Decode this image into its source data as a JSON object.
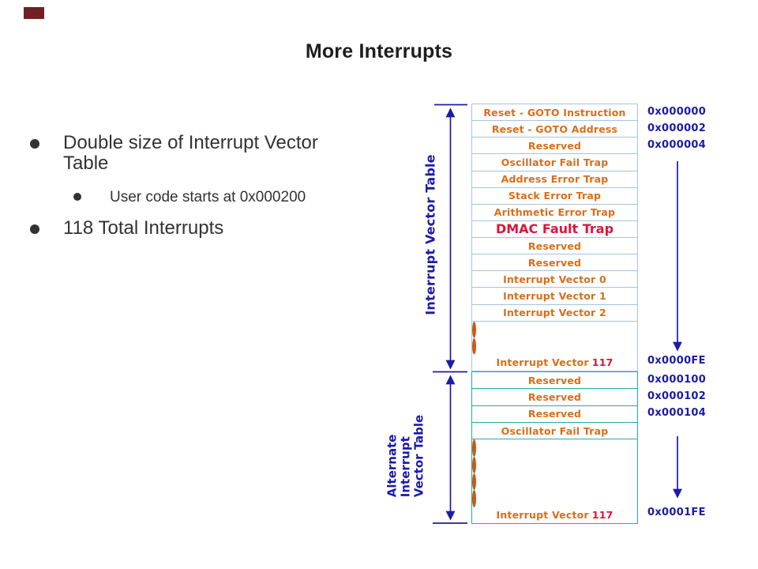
{
  "slide": {
    "title": "More Interrupts"
  },
  "bullets": {
    "items": [
      {
        "level": 1,
        "text": "Double size of Interrupt Vector Table"
      },
      {
        "level": 2,
        "text": "User code starts at 0x000200"
      },
      {
        "level": 1,
        "text": "118 Total Interrupts"
      }
    ]
  },
  "diagram": {
    "ivt_bracket_label": "Interrupt Vector Table",
    "aivt_bracket_label_lines": [
      "Alternate",
      "Interrupt",
      "Vector Table"
    ],
    "ivt_rows": [
      {
        "label": "Reset - GOTO Instruction",
        "address": "0x000000"
      },
      {
        "label": "Reset - GOTO Address",
        "address": "0x000002"
      },
      {
        "label": "Reserved",
        "address": "0x000004"
      },
      {
        "label": "Oscillator Fail Trap"
      },
      {
        "label": "Address Error Trap"
      },
      {
        "label": "Stack Error Trap"
      },
      {
        "label": "Arithmetic Error Trap"
      },
      {
        "label": "DMAC Fault Trap",
        "variant": "dmac"
      },
      {
        "label": "Reserved"
      },
      {
        "label": "Reserved"
      },
      {
        "label": "Interrupt Vector 0"
      },
      {
        "label": "Interrupt Vector 1"
      },
      {
        "label": "Interrupt Vector 2"
      },
      {
        "variant": "dot"
      },
      {
        "variant": "dot"
      },
      {
        "label": "Interrupt Vector",
        "number": "117",
        "address": "0x0000FE"
      }
    ],
    "aivt_rows": [
      {
        "label": "Reserved",
        "address": "0x000100"
      },
      {
        "label": "Reserved",
        "address": "0x000102"
      },
      {
        "label": "Reserved",
        "address": "0x000104"
      },
      {
        "label": "Oscillator Fail Trap"
      },
      {
        "variant": "dot"
      },
      {
        "variant": "dot",
        "thick_bottom": true
      },
      {
        "variant": "dot"
      },
      {
        "variant": "dot"
      },
      {
        "label": "Interrupt Vector",
        "number": "117",
        "address": "0x0001FE"
      }
    ]
  },
  "colors": {
    "orange_text": "#D96E1A",
    "red_text": "#DC143C",
    "navy": "#1B1BA8",
    "ivt_border": "#A8C2DE",
    "aivt_border": "#29A8A2",
    "dot": "#CC5A12",
    "corner_mark": "#722024",
    "title_text": "#1E1E1E",
    "body_text": "#323232"
  }
}
